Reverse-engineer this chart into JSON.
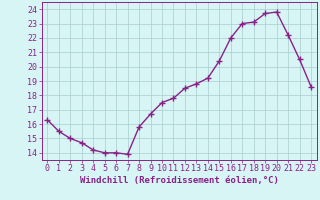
{
  "x": [
    0,
    1,
    2,
    3,
    4,
    5,
    6,
    7,
    8,
    9,
    10,
    11,
    12,
    13,
    14,
    15,
    16,
    17,
    18,
    19,
    20,
    21,
    22,
    23
  ],
  "y": [
    16.3,
    15.5,
    15.0,
    14.7,
    14.2,
    14.0,
    14.0,
    13.9,
    15.8,
    16.7,
    17.5,
    17.8,
    18.5,
    18.8,
    19.2,
    20.4,
    22.0,
    23.0,
    23.1,
    23.7,
    23.8,
    22.2,
    20.5,
    18.6
  ],
  "line_color": "#882288",
  "marker": "+",
  "marker_size": 4,
  "marker_linewidth": 1.0,
  "line_width": 1.0,
  "background_color": "#d8f5f5",
  "grid_color": "#aacccc",
  "xlabel": "Windchill (Refroidissement éolien,°C)",
  "xlabel_fontsize": 6.5,
  "tick_fontsize": 6.0,
  "ylim": [
    13.5,
    24.5
  ],
  "xlim": [
    -0.5,
    23.5
  ],
  "yticks": [
    14,
    15,
    16,
    17,
    18,
    19,
    20,
    21,
    22,
    23,
    24
  ],
  "xticks": [
    0,
    1,
    2,
    3,
    4,
    5,
    6,
    7,
    8,
    9,
    10,
    11,
    12,
    13,
    14,
    15,
    16,
    17,
    18,
    19,
    20,
    21,
    22,
    23
  ]
}
